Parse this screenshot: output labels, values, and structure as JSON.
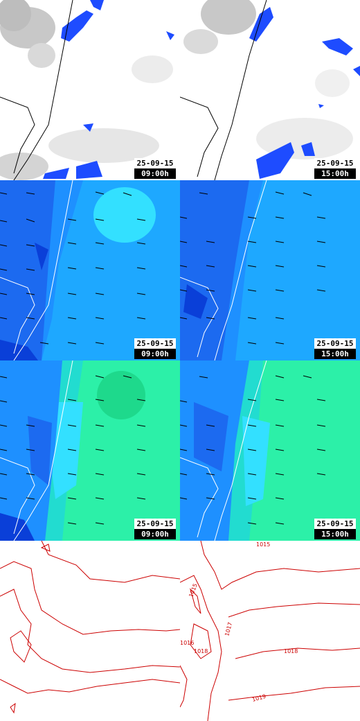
{
  "panels": [
    {
      "id": "p-precip-09",
      "date": "25-09-15",
      "time": "09:00h",
      "layer": "precipitation"
    },
    {
      "id": "p-precip-15",
      "date": "25-09-15",
      "time": "15:00h",
      "layer": "precipitation"
    },
    {
      "id": "p-wind1-09",
      "date": "25-09-15",
      "time": "09:00h",
      "layer": "wind-blue"
    },
    {
      "id": "p-wind1-15",
      "date": "25-09-15",
      "time": "15:00h",
      "layer": "wind-blue"
    },
    {
      "id": "p-wind2-09",
      "date": "25-09-15",
      "time": "09:00h",
      "layer": "wind-cyan"
    },
    {
      "id": "p-wind2-15",
      "date": "25-09-15",
      "time": "15:00h",
      "layer": "wind-cyan"
    },
    {
      "id": "p-pressure-09",
      "layer": "pressure"
    },
    {
      "id": "p-pressure-15",
      "layer": "pressure"
    }
  ],
  "isobar_labels": [
    "1015",
    "1015",
    "1017",
    "1018",
    "1018",
    "1019",
    "1016"
  ],
  "colors": {
    "rain": "#1e4cff",
    "sea_blue": "#1e90ff",
    "deep_blue": "#0a3fd8",
    "cyan": "#33e0ff",
    "mint": "#2cf0a8",
    "isobar": "#cc0000",
    "coast": "#000000"
  }
}
